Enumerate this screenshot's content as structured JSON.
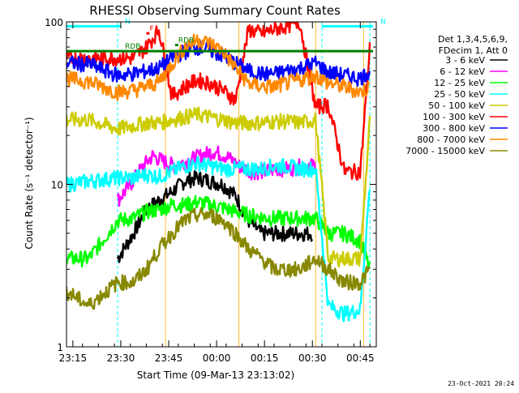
{
  "chart_data": {
    "type": "line",
    "title": "RHESSI Observing Summary Count Rates",
    "xlabel": "Start Time (09-Mar-13 23:13:02)",
    "ylabel": "Count Rate (s⁻¹ detector⁻¹)",
    "y_scale": "log",
    "ylim": [
      1,
      100
    ],
    "xlim": [
      "23:13",
      "00:50"
    ],
    "x_ticks": [
      "23:15",
      "23:30",
      "23:45",
      "00:00",
      "00:15",
      "00:30",
      "00:45"
    ],
    "y_ticks": [
      "1",
      "10",
      "100"
    ],
    "legend_header": [
      "Det 1,3,4,5,6,9,",
      "FDecim 1, Att 0"
    ],
    "legend_position": "right",
    "series": [
      {
        "name": "3 - 6 keV",
        "color": "#000000",
        "x": [
          "23:29",
          "23:34",
          "23:38",
          "23:42",
          "23:46",
          "23:50",
          "23:54",
          "23:58",
          "00:02",
          "00:06",
          "00:10",
          "00:14",
          "00:18",
          "00:22",
          "00:26",
          "00:30"
        ],
        "y": [
          3.5,
          5,
          7,
          8,
          9,
          10.5,
          11,
          10.5,
          10,
          8.5,
          6,
          5,
          5,
          5,
          5,
          5
        ]
      },
      {
        "name": "6 - 12 keV",
        "color": "#ff00ff",
        "x": [
          "23:29",
          "23:33",
          "23:37",
          "23:40",
          "23:43",
          "23:47",
          "23:51",
          "23:55",
          "23:59",
          "00:03",
          "00:07",
          "00:11",
          "00:15",
          "00:19",
          "00:23",
          "00:27",
          "00:31"
        ],
        "y": [
          8,
          10,
          13,
          15,
          14,
          13,
          14,
          15,
          16,
          15,
          13,
          12,
          12,
          12.5,
          12.5,
          13,
          13
        ]
      },
      {
        "name": "12 - 25 keV",
        "color": "#00ff00",
        "x": [
          "23:13",
          "23:20",
          "23:29",
          "23:34",
          "23:38",
          "23:42",
          "23:46",
          "23:50",
          "23:54",
          "23:58",
          "00:02",
          "00:06",
          "00:10",
          "00:14",
          "00:18",
          "00:22",
          "00:26",
          "00:31",
          "00:35",
          "00:40",
          "00:45",
          "00:48"
        ],
        "y": [
          3.5,
          3.5,
          6,
          6.2,
          6.8,
          7,
          7.5,
          7.5,
          7.8,
          7.5,
          7.2,
          6.8,
          6.5,
          6.3,
          6.2,
          6.2,
          6.2,
          6.2,
          5,
          5,
          4.5,
          3
        ]
      },
      {
        "name": "25 - 50 keV",
        "color": "#00ffff",
        "x": [
          "23:13",
          "23:20",
          "23:29",
          "23:34",
          "23:38",
          "23:42",
          "23:46",
          "23:50",
          "23:54",
          "23:58",
          "00:02",
          "00:06",
          "00:10",
          "00:14",
          "00:18",
          "00:22",
          "00:26",
          "00:31",
          "00:35",
          "00:40",
          "00:45",
          "00:48"
        ],
        "y": [
          10,
          10.5,
          11,
          11,
          11.5,
          11.2,
          12,
          13,
          13.5,
          13,
          12.5,
          12.5,
          12.5,
          12.5,
          13,
          13,
          12.5,
          12.5,
          1.8,
          1.6,
          1.7,
          10
        ]
      },
      {
        "name": "50 - 100 keV",
        "color": "#cccc00",
        "x": [
          "23:13",
          "23:20",
          "23:29",
          "23:34",
          "23:38",
          "23:42",
          "23:46",
          "23:50",
          "23:54",
          "23:58",
          "00:02",
          "00:06",
          "00:10",
          "00:14",
          "00:18",
          "00:22",
          "00:26",
          "00:31",
          "00:35",
          "00:40",
          "00:45",
          "00:48"
        ],
        "y": [
          25,
          25,
          22,
          23,
          24,
          24,
          25,
          26,
          27,
          26,
          25,
          24,
          24,
          24,
          24.5,
          24.5,
          24,
          25,
          3.5,
          3.5,
          3.5,
          25
        ]
      },
      {
        "name": "100 - 300 keV",
        "color": "#ff0000",
        "x": [
          "23:13",
          "23:20",
          "23:29",
          "23:34",
          "23:38",
          "23:42",
          "23:46",
          "23:50",
          "23:54",
          "23:58",
          "00:02",
          "00:06",
          "00:10",
          "00:14",
          "00:18",
          "00:22",
          "00:26",
          "00:31",
          "00:35",
          "00:40",
          "00:45",
          "00:48"
        ],
        "y": [
          60,
          60,
          60,
          60,
          70,
          90,
          35,
          40,
          44,
          42,
          38,
          33,
          90,
          85,
          90,
          95,
          100,
          30,
          31,
          12,
          12,
          70
        ]
      },
      {
        "name": "300 - 800 keV",
        "color": "#0000ff",
        "x": [
          "23:13",
          "23:20",
          "23:29",
          "23:34",
          "23:38",
          "23:42",
          "23:46",
          "23:50",
          "23:54",
          "23:58",
          "00:02",
          "00:06",
          "00:10",
          "00:14",
          "00:18",
          "00:22",
          "00:26",
          "00:31",
          "00:35",
          "00:40",
          "00:45",
          "00:48"
        ],
        "y": [
          56,
          55,
          47,
          48,
          50,
          52,
          60,
          66,
          70,
          67,
          62,
          56,
          50,
          48,
          48,
          50,
          52,
          56,
          49,
          47,
          45,
          50
        ]
      },
      {
        "name": "800 - 7000 keV",
        "color": "#ff8800",
        "x": [
          "23:13",
          "23:20",
          "23:29",
          "23:34",
          "23:38",
          "23:42",
          "23:46",
          "23:50",
          "23:54",
          "23:58",
          "00:02",
          "00:06",
          "00:10",
          "00:14",
          "00:18",
          "00:22",
          "00:26",
          "00:31",
          "00:35",
          "00:40",
          "00:45",
          "00:48"
        ],
        "y": [
          45,
          43,
          37,
          38,
          40,
          43,
          55,
          70,
          78,
          74,
          66,
          52,
          42,
          40,
          40,
          42,
          44,
          47,
          42,
          40,
          37,
          40
        ]
      },
      {
        "name": "7000 - 15000 keV",
        "color": "#888800",
        "x": [
          "23:13",
          "23:20",
          "23:29",
          "23:34",
          "23:38",
          "23:42",
          "23:46",
          "23:50",
          "23:54",
          "23:58",
          "00:02",
          "00:06",
          "00:10",
          "00:14",
          "00:18",
          "00:22",
          "00:26",
          "00:31",
          "00:35",
          "00:40",
          "00:45",
          "00:48"
        ],
        "y": [
          2.2,
          1.8,
          2.5,
          2.5,
          3,
          4,
          5,
          6,
          6.5,
          6.5,
          6,
          5,
          4,
          3.5,
          3,
          3,
          3,
          3.5,
          3,
          2.5,
          2.5,
          3
        ]
      }
    ],
    "flags": [
      {
        "label": "N",
        "color": "#00ffff",
        "level": 94,
        "x_start": "23:13",
        "x_end": "23:30"
      },
      {
        "label": "N",
        "color": "#00ffff",
        "level": 94,
        "x_start": "00:33",
        "x_end": "00:49"
      },
      {
        "label": "F",
        "color": "#ff0000",
        "level": 85,
        "x_start": "23:38",
        "x_end": "23:39"
      },
      {
        "label": "RDB",
        "color": "#008000",
        "level": 66,
        "x_start": "23:13",
        "x_end": "00:49"
      },
      {
        "label": "RDB",
        "color": "#008000",
        "level": 72,
        "x_start": "23:47",
        "x_end": "23:48"
      }
    ],
    "vlines_dashed": [
      "23:29",
      "00:33",
      "00:48"
    ],
    "vlines_solid": [
      "23:44",
      "00:07",
      "00:31",
      "00:46"
    ]
  },
  "footer": {
    "date": "23-Oct-2021 20:24"
  }
}
